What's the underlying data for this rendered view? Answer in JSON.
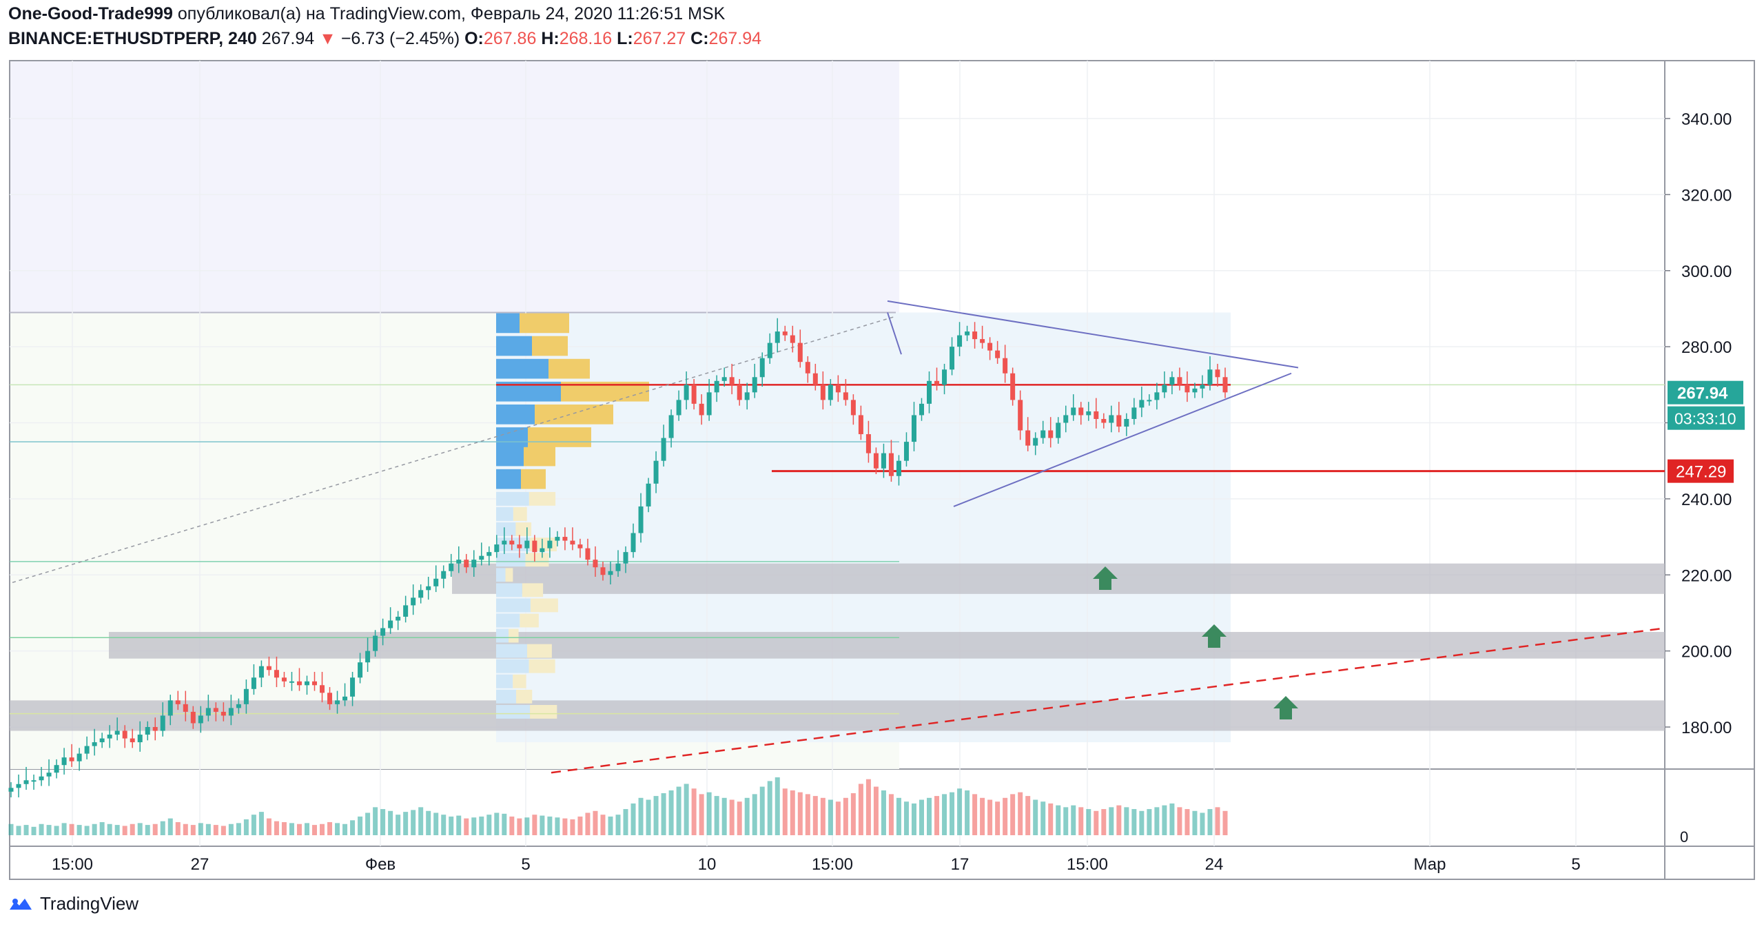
{
  "header": {
    "author": "One-Good-Trade999",
    "published_text": "опубликовал(а) на TradingView.com, Февраль 24, 2020 11:26:51 MSK",
    "symbol": "BINANCE:ETHUSDTPERP, 240",
    "last": "267.94",
    "change_arrow": "▼",
    "change": "−6.73 (−2.45%)",
    "o_label": "O:",
    "o_val": "267.86",
    "h_label": "H:",
    "h_val": "268.16",
    "l_label": "L:",
    "l_val": "267.27",
    "c_label": "C:",
    "c_val": "267.94"
  },
  "footer": {
    "brand": "TradingView",
    "logo_icon": "tradingview-logo-icon"
  },
  "colors": {
    "up": "#26a69a",
    "down": "#ef5350",
    "volume_profile_up": "#5aa9e6",
    "volume_profile_down": "#f0cc6a",
    "resistance_line": "#e02424",
    "triangle_lines": "#6d6fc2",
    "support_zone": "#bdbdc5",
    "arrow": "#3b8a5e"
  },
  "chart_data": {
    "type": "candlestick",
    "symbol": "ETHUSDTPERP",
    "interval": "240",
    "x_tick_labels": [
      "15:00",
      "27",
      "Фев",
      "5",
      "10",
      "15:00",
      "17",
      "15:00",
      "24",
      "Мар",
      "5"
    ],
    "ylim": [
      168,
      355
    ],
    "y_ticks": [
      180,
      200,
      220,
      240,
      260,
      280,
      300,
      320,
      340
    ],
    "y_tick_labels": [
      "180.00",
      "200.00",
      "220.00",
      "240.00",
      "260.00",
      "280.00",
      "300.00",
      "320.00",
      "340.00"
    ],
    "price_label": "267.94",
    "countdown_label": "03:33:10",
    "level_label": "247.29",
    "volume_axis_label": "0",
    "closes": [
      164,
      165,
      166,
      166,
      167,
      168,
      170,
      172,
      171,
      173,
      175,
      176,
      177,
      178,
      179,
      177,
      176,
      178,
      180,
      179,
      183,
      187,
      186,
      184,
      181,
      183,
      185,
      184,
      183,
      185,
      186,
      190,
      193,
      196,
      195,
      193,
      192,
      192,
      191,
      192,
      191,
      189,
      186,
      187,
      188,
      193,
      197,
      200,
      204,
      206,
      208,
      209,
      212,
      214,
      216,
      217,
      219,
      221,
      223,
      224,
      222,
      224,
      225,
      226,
      228,
      229,
      228,
      227,
      229,
      226,
      227,
      229,
      230,
      229,
      228,
      227,
      224,
      222,
      220,
      221,
      223,
      226,
      231,
      238,
      244,
      250,
      256,
      262,
      266,
      270,
      265,
      262,
      268,
      271,
      272,
      270,
      266,
      268,
      272,
      277,
      281,
      284,
      283,
      281,
      276,
      273,
      270,
      266,
      270,
      268,
      266,
      262,
      257,
      252,
      248,
      252,
      246,
      250,
      255,
      262,
      265,
      271,
      270,
      274,
      280,
      283,
      284,
      282,
      281,
      279,
      277,
      273,
      266,
      258,
      254,
      256,
      258,
      256,
      260,
      262,
      264,
      262,
      263,
      261,
      260,
      262,
      259,
      261,
      264,
      266,
      266,
      268,
      270,
      272,
      270,
      268,
      269,
      270,
      274,
      272,
      268
    ],
    "volumes": [
      12,
      10,
      11,
      9,
      12,
      11,
      10,
      13,
      12,
      11,
      10,
      12,
      14,
      12,
      11,
      10,
      12,
      13,
      11,
      12,
      15,
      18,
      14,
      12,
      11,
      13,
      12,
      11,
      10,
      12,
      13,
      17,
      22,
      25,
      18,
      15,
      14,
      13,
      12,
      13,
      11,
      12,
      14,
      13,
      12,
      16,
      20,
      24,
      30,
      28,
      26,
      22,
      25,
      27,
      30,
      26,
      24,
      22,
      20,
      21,
      18,
      19,
      20,
      22,
      24,
      23,
      20,
      18,
      19,
      22,
      21,
      20,
      19,
      18,
      17,
      20,
      24,
      26,
      22,
      20,
      22,
      28,
      34,
      40,
      38,
      42,
      45,
      48,
      52,
      55,
      50,
      44,
      46,
      42,
      40,
      38,
      36,
      40,
      44,
      52,
      58,
      62,
      50,
      48,
      46,
      44,
      42,
      40,
      38,
      36,
      40,
      45,
      55,
      60,
      52,
      48,
      44,
      40,
      36,
      34,
      38,
      40,
      42,
      44,
      46,
      50,
      48,
      44,
      40,
      38,
      36,
      40,
      44,
      46,
      42,
      38,
      36,
      34,
      32,
      30,
      32,
      30,
      28,
      26,
      28,
      30,
      32,
      30,
      28,
      26,
      28,
      30,
      32,
      34,
      30,
      28,
      26,
      24,
      28,
      30,
      26
    ],
    "volume_profile": {
      "price_bins": [
        245,
        251,
        256,
        262,
        268,
        274,
        280,
        286
      ],
      "up_volume": [
        36,
        40,
        46,
        56,
        94,
        76,
        52,
        34
      ],
      "down_volume": [
        36,
        46,
        92,
        114,
        128,
        60,
        52,
        72
      ]
    },
    "horizontal_levels": [
      {
        "price": 267.94,
        "label": "267.94"
      },
      {
        "price": 247.29,
        "label": "247.29"
      },
      {
        "price": 270
      }
    ],
    "support_zones": [
      {
        "from": 215,
        "to": 223
      },
      {
        "from": 198,
        "to": 205
      },
      {
        "from": 179,
        "to": 187
      }
    ]
  }
}
